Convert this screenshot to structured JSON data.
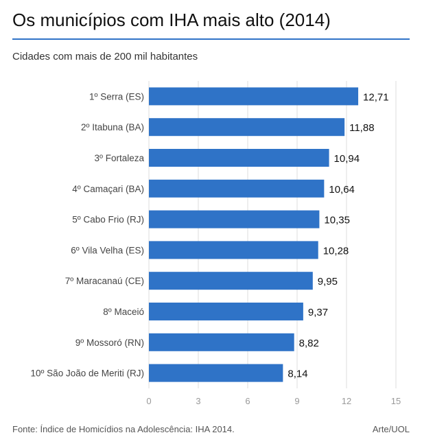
{
  "header": {
    "title": "Os municípios com IHA mais alto (2014)",
    "subtitle": "Cidades com mais de 200 mil habitantes"
  },
  "footer": {
    "source": "Fonte: Índice de Homicídios na Adolescência: IHA 2014.",
    "credit": "Arte/UOL"
  },
  "colors": {
    "bar": "#2f73c7",
    "accent_rule": "#2f73c7"
  },
  "chart_data": {
    "type": "bar",
    "orientation": "horizontal",
    "title": "Os municípios com IHA mais alto (2014)",
    "subtitle": "Cidades com mais de 200 mil habitantes",
    "xlabel": "",
    "ylabel": "",
    "categories": [
      "1º Serra (ES)",
      "2º Itabuna (BA)",
      "3º Fortaleza",
      "4º Camaçari (BA)",
      "5º Cabo Frio (RJ)",
      "6º Vila Velha (ES)",
      "7º Maracanaú (CE)",
      "8º Maceió",
      "9º Mossoró (RN)",
      "10º São João de Meriti (RJ)"
    ],
    "values": [
      12.71,
      11.88,
      10.94,
      10.64,
      10.35,
      10.28,
      9.95,
      9.37,
      8.82,
      8.14
    ],
    "value_labels": [
      "12,71",
      "11,88",
      "10,94",
      "10,64",
      "10,35",
      "10,28",
      "9,95",
      "9,37",
      "8,82",
      "8,14"
    ],
    "xlim": [
      0,
      15
    ],
    "xticks": [
      0,
      3,
      6,
      9,
      12,
      15
    ],
    "grid": true,
    "legend": "none"
  }
}
